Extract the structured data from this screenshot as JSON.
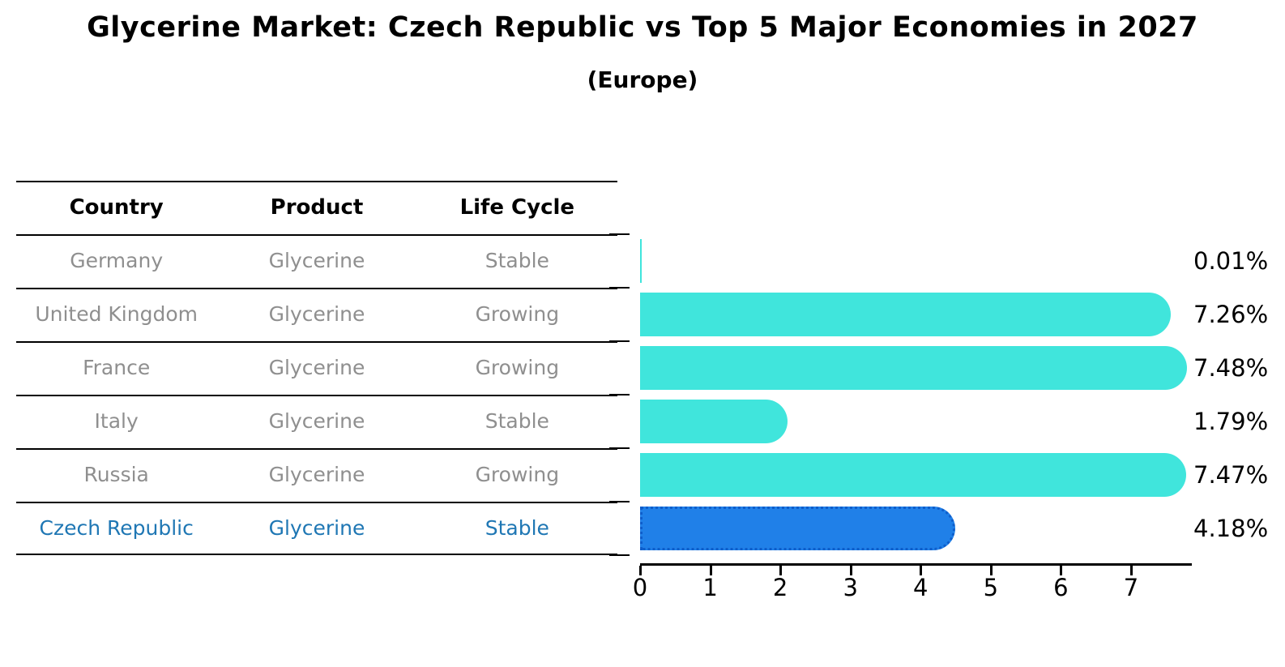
{
  "title": "Glycerine Market: Czech Republic vs Top 5 Major Economies in 2027",
  "subtitle": "(Europe)",
  "table": {
    "headers": [
      "Country",
      "Product",
      "Life Cycle"
    ],
    "rows": [
      {
        "country": "Germany",
        "product": "Glycerine",
        "life_cycle": "Stable",
        "highlight": false
      },
      {
        "country": "United Kingdom",
        "product": "Glycerine",
        "life_cycle": "Growing",
        "highlight": false
      },
      {
        "country": "France",
        "product": "Glycerine",
        "life_cycle": "Growing",
        "highlight": false
      },
      {
        "country": "Italy",
        "product": "Glycerine",
        "life_cycle": "Stable",
        "highlight": false
      },
      {
        "country": "Russia",
        "product": "Glycerine",
        "life_cycle": "Growing",
        "highlight": false
      },
      {
        "country": "Czech Republic",
        "product": "Glycerine",
        "life_cycle": "Stable",
        "highlight": true
      }
    ]
  },
  "chart_data": {
    "type": "bar",
    "orientation": "horizontal",
    "title": "Glycerine Market: Czech Republic vs Top 5 Major Economies in 2027",
    "subtitle": "(Europe)",
    "categories": [
      "Germany",
      "United Kingdom",
      "France",
      "Italy",
      "Russia",
      "Czech Republic"
    ],
    "values": [
      0.01,
      7.26,
      7.48,
      1.79,
      7.47,
      4.18
    ],
    "value_labels": [
      "0.01%",
      "7.26%",
      "7.48%",
      "1.79%",
      "7.47%",
      "4.18%"
    ],
    "xlabel": "",
    "ylabel": "",
    "xlim": [
      0,
      7.85
    ],
    "xticks": [
      0,
      1,
      2,
      3,
      4,
      5,
      6,
      7
    ],
    "grid": false,
    "legend": "none",
    "highlight_index": 5
  },
  "colors": {
    "bar_color": "#40e5dc",
    "highlight_bar_color": "#2080e8",
    "highlight_border_color": "#0d5ac8",
    "highlight_text_color": "#1f77b4",
    "row_text_color": "#8f8f8f",
    "header_text_color": "#000000",
    "axis_color": "#000000"
  }
}
